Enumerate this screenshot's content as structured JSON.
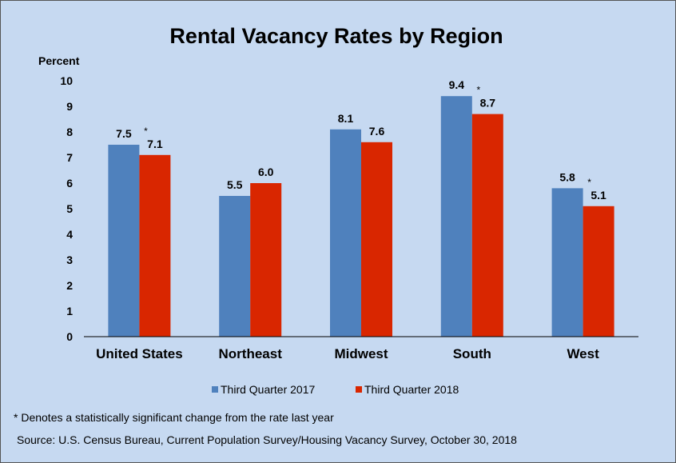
{
  "chart_data": {
    "type": "bar",
    "title": "Rental Vacancy Rates by Region",
    "ylabel": "Percent",
    "xlabel": "",
    "ylim": [
      0,
      10
    ],
    "yticks": [
      "0",
      "1",
      "2",
      "3",
      "4",
      "5",
      "6",
      "7",
      "8",
      "9",
      "10"
    ],
    "categories": [
      "United States",
      "Northeast",
      "Midwest",
      "South",
      "West"
    ],
    "series": [
      {
        "name": "Third Quarter 2017",
        "color": "#4f81bd",
        "values": [
          7.5,
          5.5,
          8.1,
          9.4,
          5.8
        ],
        "labels": [
          "7.5",
          "5.5",
          "8.1",
          "9.4",
          "5.8"
        ]
      },
      {
        "name": "Third Quarter 2018",
        "color": "#d92600",
        "values": [
          7.1,
          6.0,
          7.6,
          8.7,
          5.1
        ],
        "labels": [
          "7.1",
          "6.0",
          "7.6",
          "8.7",
          "5.1"
        ],
        "significant": [
          true,
          false,
          false,
          true,
          true
        ]
      }
    ],
    "significance_marker": "*",
    "legend_position": "bottom",
    "grid": false
  },
  "footnote": "* Denotes a statistically significant change from the rate last year",
  "source": "Source: U.S. Census Bureau, Current Population Survey/Housing Vacancy Survey, October 30, 2018"
}
